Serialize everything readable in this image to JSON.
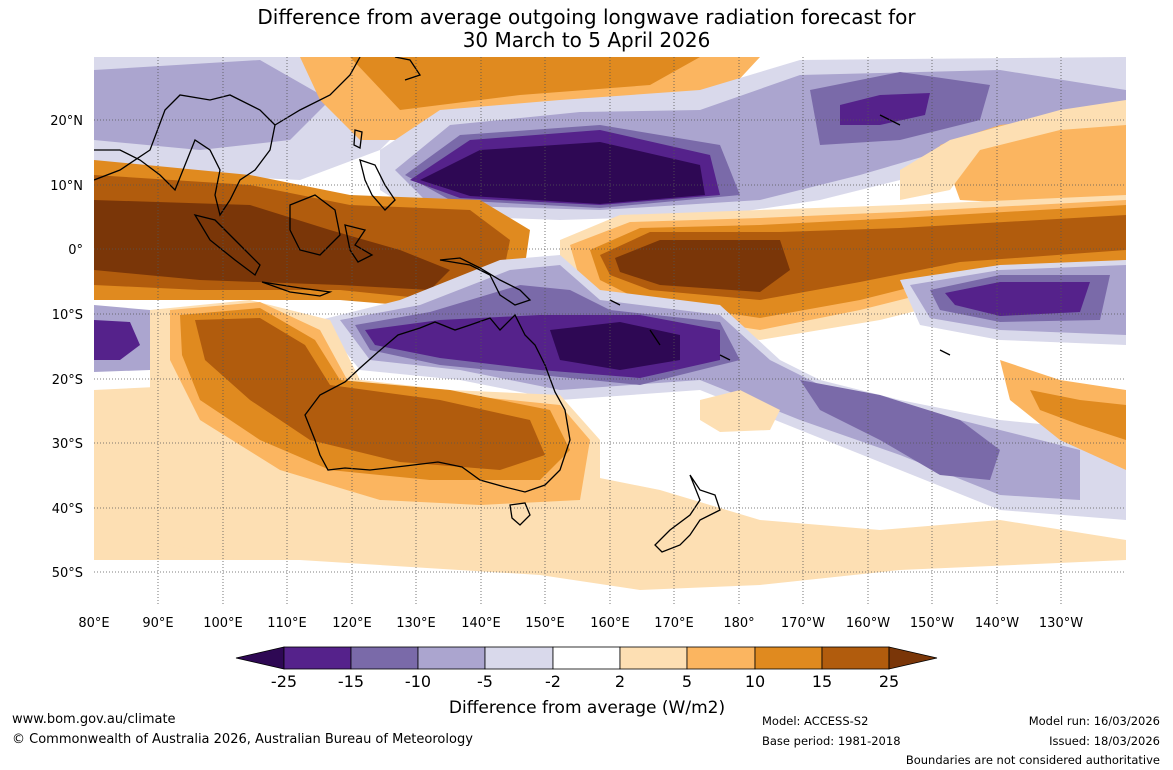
{
  "title": {
    "line1": "Difference from average outgoing longwave radiation forecast for",
    "line2": "30 March to 5 April 2026"
  },
  "map": {
    "lat_labels": [
      "20°N",
      "10°N",
      "0°",
      "10°S",
      "20°S",
      "30°S",
      "40°S",
      "50°S"
    ],
    "lon_labels": [
      "80°E",
      "90°E",
      "100°E",
      "110°E",
      "120°E",
      "130°E",
      "140°E",
      "150°E",
      "160°E",
      "170°E",
      "180°",
      "170°W",
      "160°W",
      "150°W",
      "140°W",
      "130°W"
    ],
    "extent": {
      "lon_min": 80,
      "lon_max": 240,
      "lat_min": -55,
      "lat_max": 30
    }
  },
  "colorbar": {
    "tick_labels": [
      "-25",
      "-15",
      "-10",
      "-5",
      "-2",
      "2",
      "5",
      "10",
      "15",
      "25"
    ],
    "colors": [
      "#2e0854",
      "#55228b",
      "#7a6aa9",
      "#aba5cf",
      "#d9d9eb",
      "#ffffff",
      "#fddfb3",
      "#fbb560",
      "#e08a1f",
      "#b15c0d",
      "#7a3608"
    ],
    "label": "Difference from average (W/m2)"
  },
  "footer": {
    "website": "www.bom.gov.au/climate",
    "copyright": "© Commonwealth of Australia 2026, Australian Bureau of Meteorology",
    "model": "Model: ACCESS-S2",
    "base_period": "Base period: 1981-2018",
    "model_run": "Model run: 16/03/2026",
    "issued": "Issued: 18/03/2026",
    "disclaimer": "Boundaries are not considered authoritative"
  }
}
